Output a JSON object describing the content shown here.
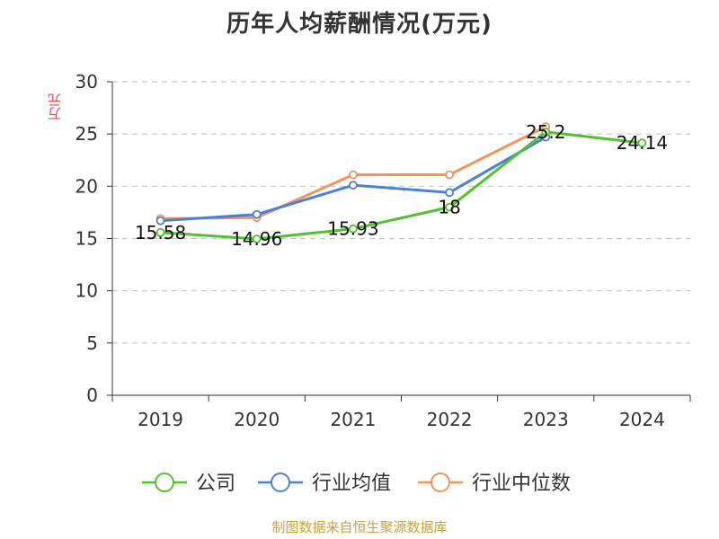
{
  "chart_data": {
    "type": "line",
    "title": "历年人均薪酬情况(万元)",
    "ylabel": "万元",
    "xlabel": "",
    "categories": [
      "2019",
      "2020",
      "2021",
      "2022",
      "2023",
      "2024"
    ],
    "ylim": [
      0,
      30
    ],
    "yticks": [
      0,
      5,
      10,
      15,
      20,
      25,
      30
    ],
    "grid": true,
    "legend_position": "bottom",
    "series": [
      {
        "name": "公司",
        "color": "#52c12f",
        "values": [
          15.58,
          14.96,
          15.93,
          18,
          25.2,
          24.14
        ],
        "labels": [
          "15.58",
          "14.96",
          "15.93",
          "18",
          "25.2",
          "24.14"
        ]
      },
      {
        "name": "行业均值",
        "color": "#4d7fd6",
        "values": [
          16.7,
          17.3,
          20.1,
          19.4,
          24.7,
          null
        ]
      },
      {
        "name": "行业中位数",
        "color": "#f39460",
        "values": [
          16.9,
          17.0,
          21.1,
          21.1,
          25.7,
          null
        ]
      }
    ]
  },
  "source": "制图数据来自恒生聚源数据库"
}
